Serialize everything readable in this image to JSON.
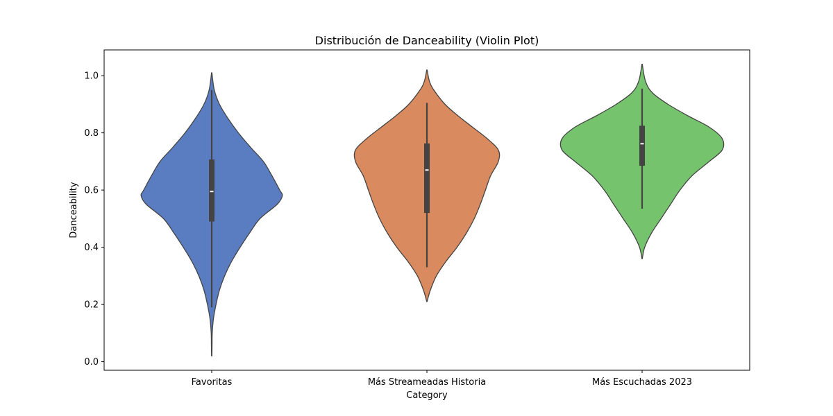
{
  "chart_data": {
    "type": "violin",
    "title": "Distribución de Danceability (Violin Plot)",
    "xlabel": "Category",
    "ylabel": "Danceability",
    "ylim": [
      -0.03,
      1.09
    ],
    "yticks": [
      0.0,
      0.2,
      0.4,
      0.6,
      0.8,
      1.0
    ],
    "ytick_labels": [
      "0.0",
      "0.2",
      "0.4",
      "0.6",
      "0.8",
      "1.0"
    ],
    "grid": false,
    "legend": "none",
    "categories": [
      "Favoritas",
      "Más Streameadas Historia",
      "Más Escuchadas 2023"
    ],
    "series": [
      {
        "category": "Favoritas",
        "color": "#5a7dc1",
        "min": 0.02,
        "max": 1.01,
        "q1": 0.49,
        "median": 0.595,
        "q3": 0.707,
        "whisker_low": 0.19,
        "whisker_high": 0.95,
        "density": [
          [
            0.02,
            0.002
          ],
          [
            0.06,
            0.004
          ],
          [
            0.1,
            0.006
          ],
          [
            0.15,
            0.02
          ],
          [
            0.2,
            0.05
          ],
          [
            0.25,
            0.09
          ],
          [
            0.3,
            0.15
          ],
          [
            0.35,
            0.23
          ],
          [
            0.4,
            0.33
          ],
          [
            0.45,
            0.44
          ],
          [
            0.5,
            0.56
          ],
          [
            0.55,
            0.76
          ],
          [
            0.58,
            0.82
          ],
          [
            0.6,
            0.79
          ],
          [
            0.65,
            0.7
          ],
          [
            0.7,
            0.6
          ],
          [
            0.75,
            0.45
          ],
          [
            0.8,
            0.31
          ],
          [
            0.85,
            0.19
          ],
          [
            0.9,
            0.09
          ],
          [
            0.95,
            0.03
          ],
          [
            1.01,
            0.002
          ]
        ]
      },
      {
        "category": "Más Streameadas Historia",
        "color": "#d98a5e",
        "min": 0.21,
        "max": 1.02,
        "q1": 0.52,
        "median": 0.67,
        "q3": 0.763,
        "whisker_low": 0.33,
        "whisker_high": 0.905,
        "density": [
          [
            0.21,
            0.002
          ],
          [
            0.25,
            0.04
          ],
          [
            0.3,
            0.11
          ],
          [
            0.35,
            0.22
          ],
          [
            0.4,
            0.35
          ],
          [
            0.45,
            0.46
          ],
          [
            0.5,
            0.55
          ],
          [
            0.55,
            0.62
          ],
          [
            0.6,
            0.68
          ],
          [
            0.65,
            0.74
          ],
          [
            0.7,
            0.83
          ],
          [
            0.74,
            0.83
          ],
          [
            0.78,
            0.7
          ],
          [
            0.82,
            0.53
          ],
          [
            0.86,
            0.36
          ],
          [
            0.9,
            0.21
          ],
          [
            0.95,
            0.08
          ],
          [
            0.98,
            0.03
          ],
          [
            1.02,
            0.002
          ]
        ]
      },
      {
        "category": "Más Escuchadas 2023",
        "color": "#75c36d",
        "min": 0.36,
        "max": 1.04,
        "q1": 0.685,
        "median": 0.762,
        "q3": 0.825,
        "whisker_low": 0.535,
        "whisker_high": 0.955,
        "density": [
          [
            0.36,
            0.002
          ],
          [
            0.4,
            0.03
          ],
          [
            0.45,
            0.11
          ],
          [
            0.5,
            0.22
          ],
          [
            0.55,
            0.33
          ],
          [
            0.6,
            0.44
          ],
          [
            0.65,
            0.58
          ],
          [
            0.7,
            0.78
          ],
          [
            0.74,
            0.93
          ],
          [
            0.78,
            0.93
          ],
          [
            0.82,
            0.78
          ],
          [
            0.86,
            0.53
          ],
          [
            0.9,
            0.3
          ],
          [
            0.94,
            0.12
          ],
          [
            0.98,
            0.04
          ],
          [
            1.04,
            0.002
          ]
        ]
      }
    ]
  }
}
